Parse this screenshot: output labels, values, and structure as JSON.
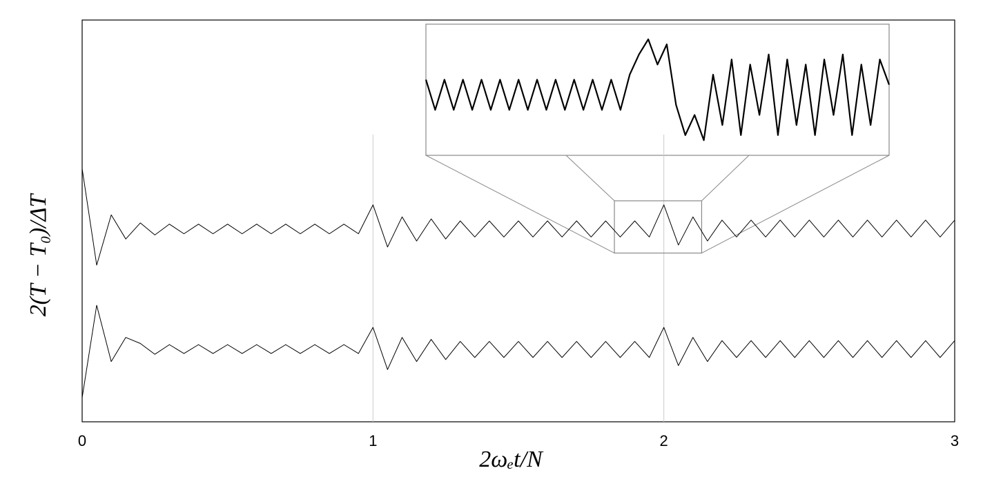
{
  "chart_data": [
    {
      "type": "line",
      "xlabel": "2ωₑt/N",
      "ylabel": "2(T − T₀)/ΔT",
      "x": [
        0,
        0.05,
        0.1,
        0.15,
        0.2,
        0.25,
        0.3,
        0.35,
        0.4,
        0.45,
        0.5,
        0.55,
        0.6,
        0.65,
        0.7,
        0.75,
        0.8,
        0.85,
        0.9,
        0.95,
        1,
        1.05,
        1.1,
        1.15,
        1.2,
        1.25,
        1.3,
        1.35,
        1.4,
        1.45,
        1.5,
        1.55,
        1.6,
        1.65,
        1.7,
        1.75,
        1.8,
        1.85,
        1.9,
        1.95,
        2,
        2.05,
        2.1,
        2.15,
        2.2,
        2.25,
        2.3,
        2.35,
        2.4,
        2.45,
        2.5,
        2.55,
        2.6,
        2.65,
        2.7,
        2.75,
        2.8,
        2.85,
        2.9,
        2.95,
        3
      ],
      "series": [
        {
          "color": "#000000",
          "values": [
            6.3,
            3.9,
            5.15,
            4.55,
            4.95,
            4.65,
            4.92,
            4.68,
            4.92,
            4.68,
            4.92,
            4.68,
            4.92,
            4.68,
            4.92,
            4.68,
            4.92,
            4.68,
            4.92,
            4.68,
            5.4,
            4.35,
            5.1,
            4.5,
            5.05,
            4.55,
            5.0,
            4.6,
            5.0,
            4.6,
            5.0,
            4.6,
            5.0,
            4.6,
            5.0,
            4.6,
            5.0,
            4.6,
            5.0,
            4.6,
            5.4,
            4.4,
            5.1,
            4.5,
            5.02,
            4.6,
            5.02,
            4.6,
            5.02,
            4.6,
            5.02,
            4.6,
            5.02,
            4.6,
            5.02,
            4.6,
            5.02,
            4.6,
            5.02,
            4.6,
            5.02
          ]
        },
        {
          "color": "#000000",
          "values": [
            0.6,
            2.9,
            1.5,
            2.1,
            1.95,
            1.68,
            1.92,
            1.7,
            1.92,
            1.7,
            1.92,
            1.7,
            1.92,
            1.7,
            1.92,
            1.7,
            1.92,
            1.7,
            1.92,
            1.7,
            2.35,
            1.3,
            2.1,
            1.5,
            2.05,
            1.55,
            2.0,
            1.6,
            2.0,
            1.6,
            2.0,
            1.6,
            2.0,
            1.6,
            2.0,
            1.6,
            2.0,
            1.6,
            2.0,
            1.6,
            2.35,
            1.4,
            2.1,
            1.5,
            2.02,
            1.6,
            2.02,
            1.6,
            2.02,
            1.6,
            2.02,
            1.6,
            2.02,
            1.6,
            2.02,
            1.6,
            2.02,
            1.6,
            2.02,
            1.6,
            2.02
          ]
        }
      ],
      "xlim": [
        0,
        3
      ],
      "ylim": [
        0,
        10
      ],
      "xticks": [
        0,
        1,
        2,
        3
      ],
      "grid": "x"
    },
    {
      "type": "line",
      "x": [
        1.83,
        1.836,
        1.842,
        1.848,
        1.854,
        1.86,
        1.866,
        1.872,
        1.878,
        1.884,
        1.89,
        1.896,
        1.902,
        1.908,
        1.914,
        1.92,
        1.926,
        1.932,
        1.938,
        1.944,
        1.95,
        1.956,
        1.962,
        1.968,
        1.974,
        1.98,
        1.986,
        1.992,
        1.998,
        2.004,
        2.01,
        2.016,
        2.022,
        2.028,
        2.034,
        2.04,
        2.046,
        2.052,
        2.058,
        2.064,
        2.07,
        2.076,
        2.082,
        2.088,
        2.094,
        2.1,
        2.106,
        2.112,
        2.118,
        2.124,
        2.13
      ],
      "series": [
        {
          "color": "#000000",
          "values": [
            4.95,
            4.65,
            4.95,
            4.65,
            4.95,
            4.65,
            4.95,
            4.65,
            4.95,
            4.65,
            4.95,
            4.65,
            4.95,
            4.65,
            4.95,
            4.65,
            4.95,
            4.65,
            4.95,
            4.65,
            4.95,
            4.65,
            5.0,
            5.2,
            5.35,
            5.1,
            5.3,
            4.7,
            4.4,
            4.6,
            4.35,
            5.0,
            4.5,
            5.15,
            4.4,
            5.1,
            4.6,
            5.2,
            4.4,
            5.15,
            4.5,
            5.1,
            4.4,
            5.15,
            4.6,
            5.2,
            4.4,
            5.1,
            4.5,
            5.15,
            4.9
          ]
        }
      ],
      "xlim": [
        1.83,
        2.13
      ],
      "ylim": [
        4.2,
        5.5
      ]
    }
  ]
}
